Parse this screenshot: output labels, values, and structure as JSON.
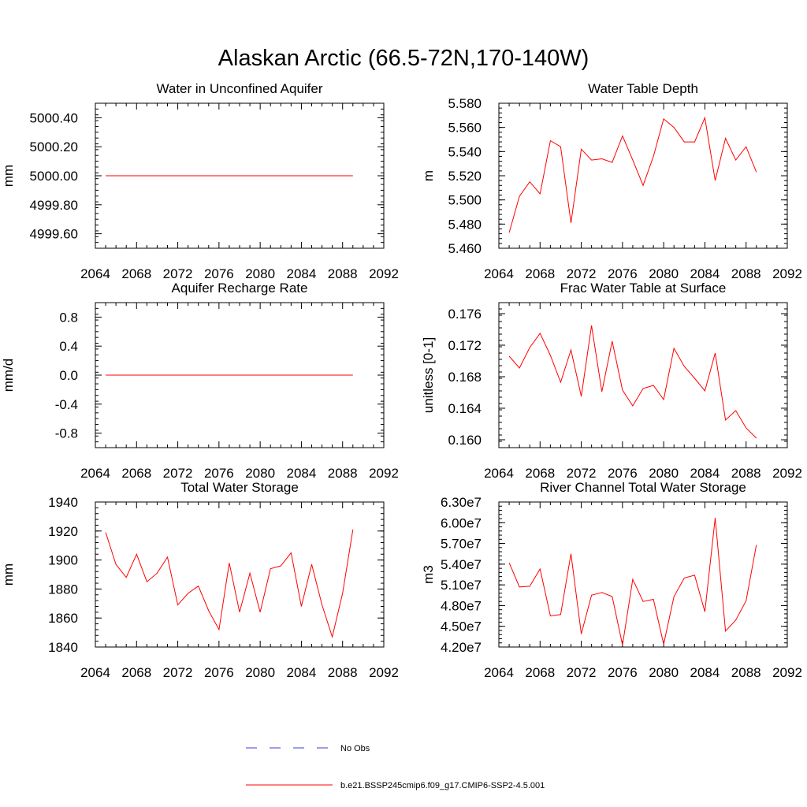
{
  "figure": {
    "title": "Alaskan Arctic (66.5-72N,170-140W)"
  },
  "legend": {
    "entries": [
      {
        "label": "No Obs",
        "color": "#3b3bd6",
        "style": "dashed"
      },
      {
        "label": "b.e21.BSSP245cmip6.f09_g17.CMIP6-SSP2-4.5.001",
        "color": "#ff0000",
        "style": "solid"
      }
    ]
  },
  "chart_data": [
    {
      "type": "line",
      "title": "Water in Unconfined Aquifer",
      "ylabel": "mm",
      "xlim": [
        2064,
        2092
      ],
      "x_ticks": [
        "2064",
        "2068",
        "2072",
        "2076",
        "2080",
        "2084",
        "2088",
        "2092"
      ],
      "ylim": [
        4999.5,
        5000.5
      ],
      "y_ticks": [
        {
          "v": 5000.4,
          "label": "5000.40"
        },
        {
          "v": 5000.2,
          "label": "5000.20"
        },
        {
          "v": 5000.0,
          "label": "5000.00"
        },
        {
          "v": 4999.8,
          "label": "4999.80"
        },
        {
          "v": 4999.6,
          "label": "4999.60"
        }
      ],
      "y_minor_step": 0.04,
      "x": [
        2065,
        2066,
        2067,
        2068,
        2069,
        2070,
        2071,
        2072,
        2073,
        2074,
        2075,
        2076,
        2077,
        2078,
        2079,
        2080,
        2081,
        2082,
        2083,
        2084,
        2085,
        2086,
        2087,
        2088,
        2089
      ],
      "series": [
        {
          "color": "#ff0000",
          "values": [
            5000,
            5000,
            5000,
            5000,
            5000,
            5000,
            5000,
            5000,
            5000,
            5000,
            5000,
            5000,
            5000,
            5000,
            5000,
            5000,
            5000,
            5000,
            5000,
            5000,
            5000,
            5000,
            5000,
            5000,
            5000
          ]
        }
      ]
    },
    {
      "type": "line",
      "title": "Water Table Depth",
      "ylabel": "m",
      "xlim": [
        2064,
        2092
      ],
      "x_ticks": [
        "2064",
        "2068",
        "2072",
        "2076",
        "2080",
        "2084",
        "2088",
        "2092"
      ],
      "ylim": [
        5.46,
        5.58
      ],
      "y_ticks": [
        {
          "v": 5.58,
          "label": "5.580"
        },
        {
          "v": 5.56,
          "label": "5.560"
        },
        {
          "v": 5.54,
          "label": "5.540"
        },
        {
          "v": 5.52,
          "label": "5.520"
        },
        {
          "v": 5.5,
          "label": "5.500"
        },
        {
          "v": 5.48,
          "label": "5.480"
        },
        {
          "v": 5.46,
          "label": "5.460"
        }
      ],
      "y_minor_step": 0.004,
      "x": [
        2065,
        2066,
        2067,
        2068,
        2069,
        2070,
        2071,
        2072,
        2073,
        2074,
        2075,
        2076,
        2077,
        2078,
        2079,
        2080,
        2081,
        2082,
        2083,
        2084,
        2085,
        2086,
        2087,
        2088,
        2089
      ],
      "series": [
        {
          "color": "#ff0000",
          "values": [
            5.473,
            5.503,
            5.515,
            5.505,
            5.549,
            5.544,
            5.481,
            5.542,
            5.533,
            5.534,
            5.531,
            5.553,
            5.533,
            5.512,
            5.536,
            5.567,
            5.56,
            5.548,
            5.548,
            5.568,
            5.516,
            5.551,
            5.533,
            5.544,
            5.523
          ]
        }
      ]
    },
    {
      "type": "line",
      "title": "Aquifer Recharge Rate",
      "ylabel": "mm/d",
      "xlim": [
        2064,
        2092
      ],
      "x_ticks": [
        "2064",
        "2068",
        "2072",
        "2076",
        "2080",
        "2084",
        "2088",
        "2092"
      ],
      "ylim": [
        -1.0,
        1.0
      ],
      "y_ticks": [
        {
          "v": 0.8,
          "label": "0.8"
        },
        {
          "v": 0.4,
          "label": "0.4"
        },
        {
          "v": 0.0,
          "label": "0.0"
        },
        {
          "v": -0.4,
          "label": "-0.4"
        },
        {
          "v": -0.8,
          "label": "-0.8"
        }
      ],
      "y_minor_step": 0.08,
      "x": [
        2065,
        2066,
        2067,
        2068,
        2069,
        2070,
        2071,
        2072,
        2073,
        2074,
        2075,
        2076,
        2077,
        2078,
        2079,
        2080,
        2081,
        2082,
        2083,
        2084,
        2085,
        2086,
        2087,
        2088,
        2089
      ],
      "series": [
        {
          "color": "#ff0000",
          "values": [
            0,
            0,
            0,
            0,
            0,
            0,
            0,
            0,
            0,
            0,
            0,
            0,
            0,
            0,
            0,
            0,
            0,
            0,
            0,
            0,
            0,
            0,
            0,
            0,
            0
          ]
        }
      ]
    },
    {
      "type": "line",
      "title": "Frac Water Table at Surface",
      "ylabel": "unitless [0-1]",
      "xlim": [
        2064,
        2092
      ],
      "x_ticks": [
        "2064",
        "2068",
        "2072",
        "2076",
        "2080",
        "2084",
        "2088",
        "2092"
      ],
      "ylim": [
        0.159,
        0.1774
      ],
      "y_ticks": [
        {
          "v": 0.176,
          "label": "0.176"
        },
        {
          "v": 0.172,
          "label": "0.172"
        },
        {
          "v": 0.168,
          "label": "0.168"
        },
        {
          "v": 0.164,
          "label": "0.164"
        },
        {
          "v": 0.16,
          "label": "0.160"
        }
      ],
      "y_minor_step": 0.0008,
      "x": [
        2065,
        2066,
        2067,
        2068,
        2069,
        2070,
        2071,
        2072,
        2073,
        2074,
        2075,
        2076,
        2077,
        2078,
        2079,
        2080,
        2081,
        2082,
        2083,
        2084,
        2085,
        2086,
        2087,
        2088,
        2089
      ],
      "series": [
        {
          "color": "#ff0000",
          "values": [
            0.1706,
            0.1691,
            0.1717,
            0.1735,
            0.1707,
            0.1673,
            0.1714,
            0.1655,
            0.1745,
            0.1661,
            0.1725,
            0.1663,
            0.1643,
            0.1665,
            0.1669,
            0.1651,
            0.1716,
            0.1693,
            0.1678,
            0.1662,
            0.171,
            0.1625,
            0.1637,
            0.1615,
            0.1602
          ]
        }
      ]
    },
    {
      "type": "line",
      "title": "Total Water Storage",
      "ylabel": "mm",
      "xlim": [
        2064,
        2092
      ],
      "x_ticks": [
        "2064",
        "2068",
        "2072",
        "2076",
        "2080",
        "2084",
        "2088",
        "2092"
      ],
      "ylim": [
        1840,
        1940
      ],
      "y_ticks": [
        {
          "v": 1940,
          "label": "1940"
        },
        {
          "v": 1920,
          "label": "1920"
        },
        {
          "v": 1900,
          "label": "1900"
        },
        {
          "v": 1880,
          "label": "1880"
        },
        {
          "v": 1860,
          "label": "1860"
        },
        {
          "v": 1840,
          "label": "1840"
        }
      ],
      "y_minor_step": 4,
      "x": [
        2065,
        2066,
        2067,
        2068,
        2069,
        2070,
        2071,
        2072,
        2073,
        2074,
        2075,
        2076,
        2077,
        2078,
        2079,
        2080,
        2081,
        2082,
        2083,
        2084,
        2085,
        2086,
        2087,
        2088,
        2089
      ],
      "series": [
        {
          "color": "#ff0000",
          "values": [
            1919,
            1897,
            1888,
            1904,
            1885,
            1891,
            1902,
            1869,
            1877,
            1882,
            1865,
            1852,
            1898,
            1864,
            1891,
            1864,
            1894,
            1896,
            1905,
            1868,
            1897,
            1869,
            1847,
            1877,
            1921
          ]
        }
      ]
    },
    {
      "type": "line",
      "title": "River Channel Total Water Storage",
      "ylabel": "m3",
      "xlim": [
        2064,
        2092
      ],
      "x_ticks": [
        "2064",
        "2068",
        "2072",
        "2076",
        "2080",
        "2084",
        "2088",
        "2092"
      ],
      "ylim": [
        42000000,
        63000000
      ],
      "y_ticks": [
        {
          "v": 63000000,
          "label": "6.30e7"
        },
        {
          "v": 60000000,
          "label": "6.00e7"
        },
        {
          "v": 57000000,
          "label": "5.70e7"
        },
        {
          "v": 54000000,
          "label": "5.40e7"
        },
        {
          "v": 51000000,
          "label": "5.10e7"
        },
        {
          "v": 48000000,
          "label": "4.80e7"
        },
        {
          "v": 45000000,
          "label": "4.50e7"
        },
        {
          "v": 42000000,
          "label": "4.20e7"
        }
      ],
      "y_minor_step": 600000,
      "x": [
        2065,
        2066,
        2067,
        2068,
        2069,
        2070,
        2071,
        2072,
        2073,
        2074,
        2075,
        2076,
        2077,
        2078,
        2079,
        2080,
        2081,
        2082,
        2083,
        2084,
        2085,
        2086,
        2087,
        2088,
        2089
      ],
      "series": [
        {
          "color": "#ff0000",
          "values": [
            54200000,
            50700000,
            50800000,
            53300000,
            46500000,
            46700000,
            55500000,
            43900000,
            49500000,
            49900000,
            49300000,
            42300000,
            51800000,
            48600000,
            48900000,
            42400000,
            49300000,
            52000000,
            52400000,
            47100000,
            60700000,
            44300000,
            45900000,
            48700000,
            56800000
          ]
        }
      ]
    }
  ]
}
